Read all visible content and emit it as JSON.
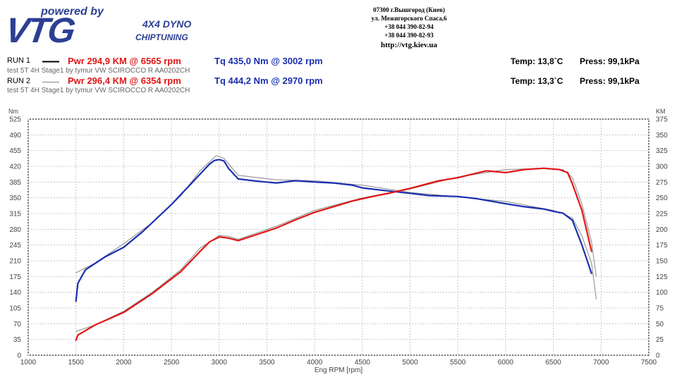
{
  "header": {
    "powered": "powered by",
    "brand": "VTG",
    "dyno": "4X4 DYNO",
    "chiptuning": "CHIPTUNING",
    "contact": [
      "07300 г.Вышгород (Киев)",
      "ул. Межигорского Спаса,6",
      "+38 044 390-82-94",
      "+38 044 390-82-93",
      "http://vtg.kiev.ua"
    ]
  },
  "runs": [
    {
      "label": "RUN 1",
      "pwr": "Pwr  294,9 KM @ 6565 rpm",
      "tq": "Tq 435,0 Nm @ 3002 rpm",
      "desc": "test  5T 4H Stage1 by tymur VW SCIROCCO R AA0202CH",
      "temp": "Temp: 13,8`C",
      "press": "Press: 99,1kPa"
    },
    {
      "label": "RUN 2",
      "pwr": "Pwr  296,4 KM @ 6354 rpm",
      "tq": "Tq 444,2 Nm @ 2970 rpm",
      "desc": "test  5T 4H Stage1 by tymur VW SCIROCCO R AA0202CH",
      "temp": "Temp: 13,3`C",
      "press": "Press: 99,1kPa"
    }
  ],
  "chart_data": {
    "type": "line",
    "xlabel": "Eng RPM [rpm]",
    "ylabel_left": "Nm",
    "ylabel_right": "KM",
    "xlim": [
      1000,
      7500
    ],
    "xticks": [
      1000,
      1500,
      2000,
      2500,
      3000,
      3500,
      4000,
      4500,
      5000,
      5500,
      6000,
      6500,
      7000,
      7500
    ],
    "ylim_left": [
      0,
      525
    ],
    "yticks_left": [
      0,
      35,
      70,
      105,
      140,
      175,
      210,
      245,
      280,
      315,
      350,
      385,
      420,
      455,
      490,
      525
    ],
    "ylim_right": [
      0,
      375
    ],
    "yticks_right": [
      0,
      25,
      50,
      75,
      100,
      125,
      150,
      175,
      200,
      225,
      250,
      275,
      300,
      325,
      350,
      375
    ],
    "grid": true,
    "colors": {
      "torque": "#1a2fb0",
      "power": "#e01616",
      "run2": "#888888"
    },
    "series": [
      {
        "name": "RUN 1",
        "quantity": "torque",
        "axis": "left",
        "x": [
          1500,
          1520,
          1600,
          1800,
          2000,
          2200,
          2500,
          2700,
          2900,
          2950,
          3000,
          3050,
          3100,
          3200,
          3400,
          3600,
          3800,
          4000,
          4200,
          4400,
          4500,
          4700,
          5000,
          5200,
          5500,
          5700,
          6000,
          6200,
          6400,
          6500,
          6600,
          6700,
          6800,
          6900
        ],
        "y": [
          120,
          160,
          190,
          218,
          240,
          275,
          335,
          380,
          425,
          433,
          435,
          432,
          415,
          392,
          387,
          383,
          388,
          385,
          383,
          378,
          372,
          367,
          360,
          355,
          353,
          348,
          337,
          330,
          325,
          320,
          316,
          300,
          245,
          182
        ]
      },
      {
        "name": "RUN 1",
        "quantity": "power",
        "axis": "right",
        "x": [
          1500,
          1520,
          1700,
          2000,
          2300,
          2600,
          2800,
          2900,
          3000,
          3100,
          3200,
          3400,
          3600,
          3800,
          4000,
          4200,
          4400,
          4600,
          4800,
          5000,
          5300,
          5500,
          5800,
          6000,
          6200,
          6400,
          6565,
          6650,
          6700,
          6800,
          6900
        ],
        "y": [
          24,
          32,
          48,
          68,
          98,
          133,
          165,
          180,
          188,
          186,
          182,
          192,
          202,
          215,
          227,
          236,
          245,
          252,
          258,
          265,
          277,
          282,
          293,
          290,
          295,
          297,
          294.9,
          290,
          272,
          230,
          165
        ]
      },
      {
        "name": "RUN 2",
        "quantity": "torque",
        "axis": "left",
        "x": [
          1500,
          1700,
          2000,
          2300,
          2600,
          2800,
          2970,
          3050,
          3200,
          3600,
          4000,
          4500,
          5000,
          5500,
          6000,
          6500,
          6600,
          6700,
          6800,
          6900,
          6950
        ],
        "y": [
          183,
          205,
          248,
          295,
          355,
          410,
          444,
          438,
          400,
          390,
          388,
          378,
          362,
          352,
          342,
          322,
          315,
          305,
          265,
          205,
          125
        ]
      },
      {
        "name": "RUN 2",
        "quantity": "power",
        "axis": "right",
        "x": [
          1500,
          1700,
          2000,
          2300,
          2600,
          2800,
          3000,
          3100,
          3200,
          3600,
          4000,
          4500,
          5000,
          5500,
          6000,
          6354,
          6600,
          6700,
          6800,
          6900,
          6950
        ],
        "y": [
          38,
          48,
          70,
          100,
          136,
          170,
          190,
          189,
          184,
          205,
          230,
          250,
          264,
          283,
          295,
          296.4,
          295,
          282,
          240,
          180,
          125
        ]
      }
    ]
  }
}
